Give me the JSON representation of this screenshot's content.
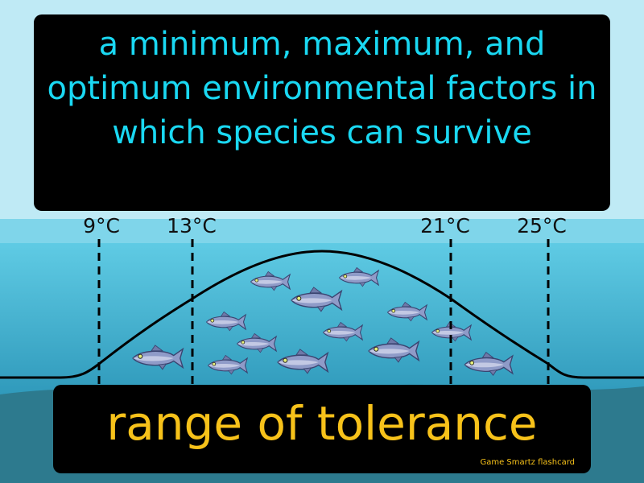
{
  "definition": "a minimum, maximum, and optimum environmental factors in which species can survive",
  "term": "range of tolerance",
  "credit": "Game Smartz flashcard",
  "temperatures": [
    "9°C",
    "13°C",
    "21°C",
    "25°C"
  ],
  "colors": {
    "sky": "#bfeaf5",
    "water": "#49bfdc",
    "water_deep": "#2a93b5",
    "ground": "#2d7a8e",
    "definition_text": "#1ad8f2",
    "term_text": "#f7c21a",
    "card_bg": "#000000"
  },
  "icons": [
    "fish-icon"
  ]
}
